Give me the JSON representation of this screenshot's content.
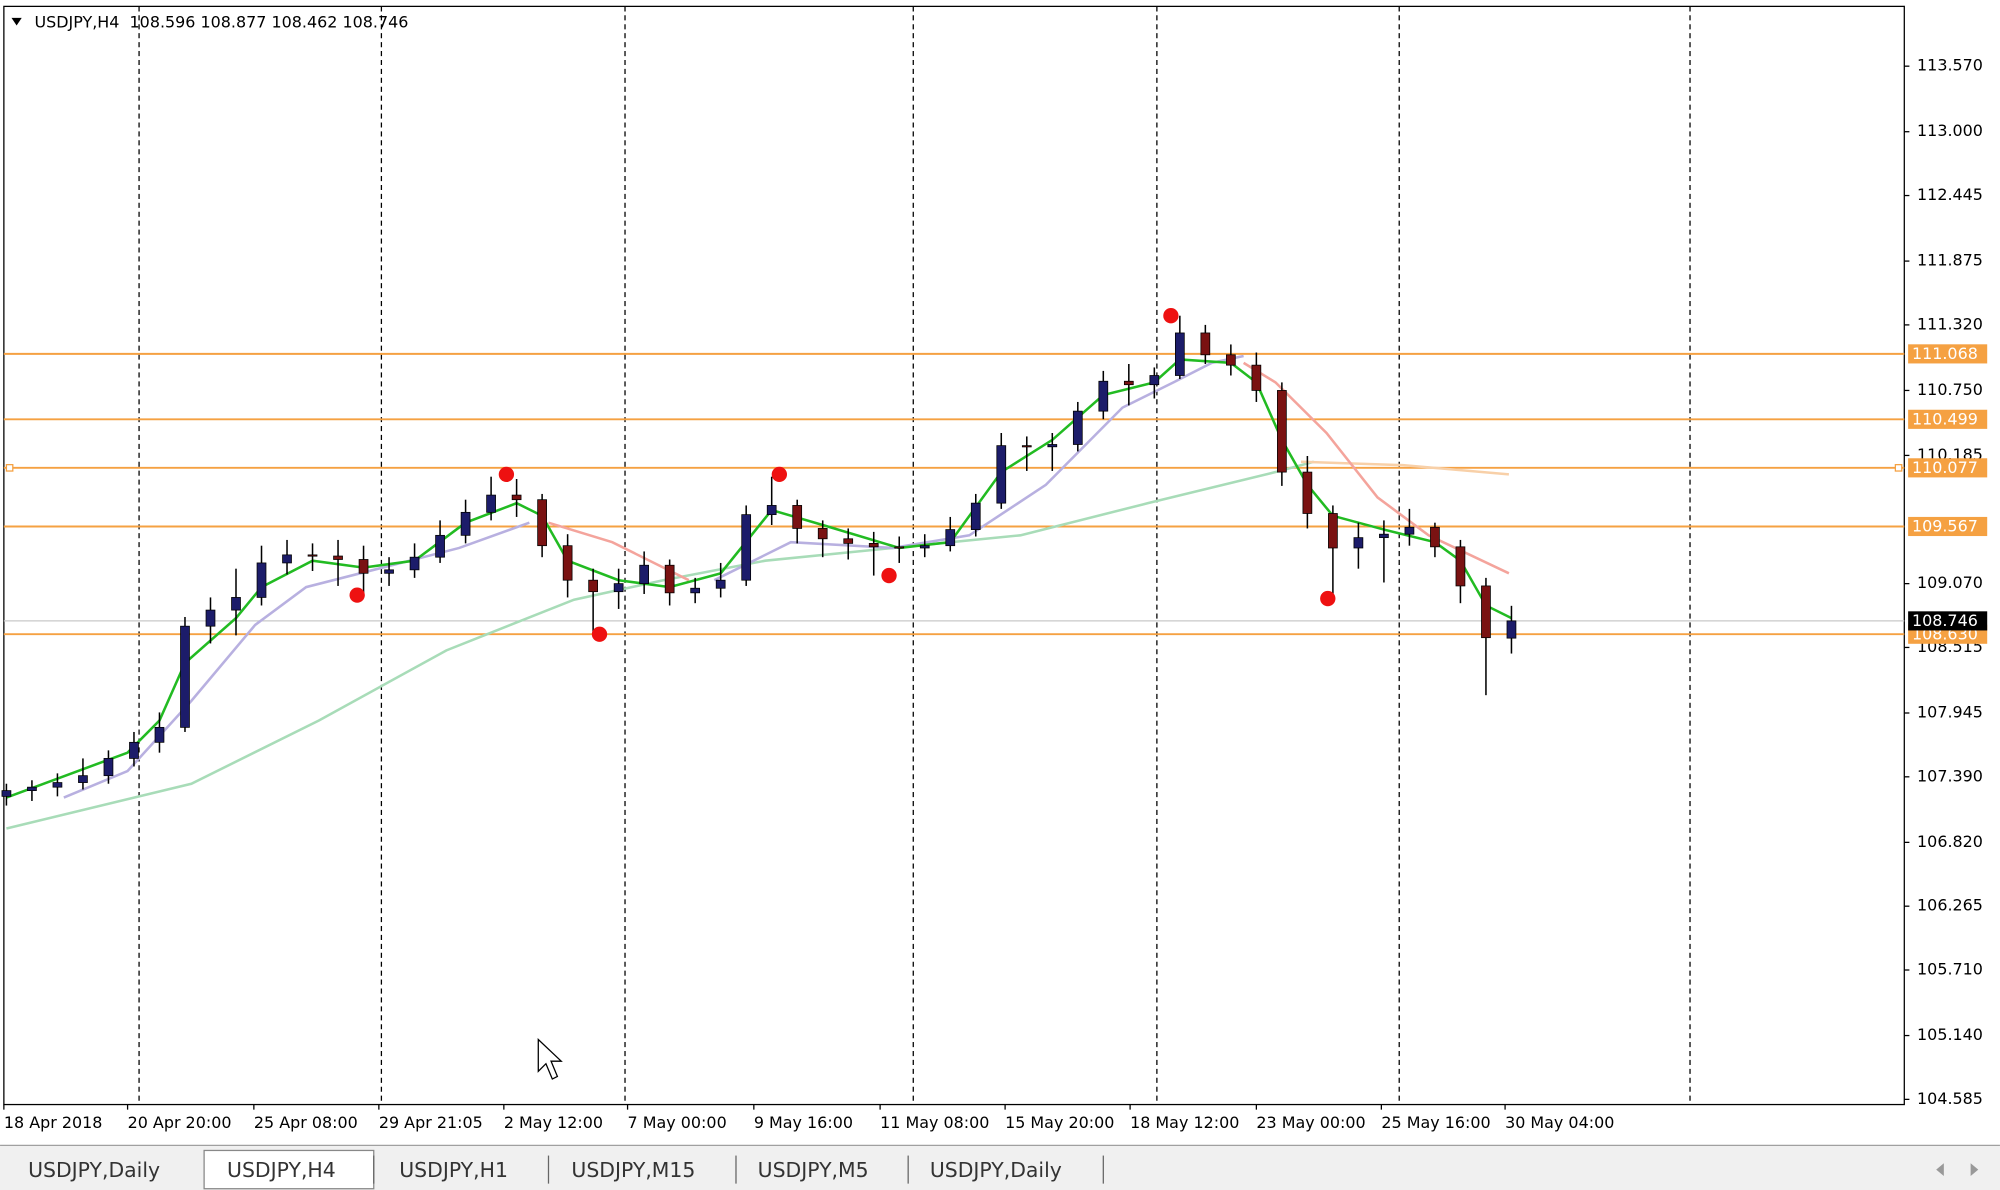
{
  "chart_data": {
    "type": "candlestick",
    "header": "USDJPY,H4  108.596 108.877 108.462 108.746",
    "ylim": [
      104.54,
      114.09
    ],
    "xlim": [
      -0.1,
      74.4
    ],
    "yticks": [
      {
        "value": 113.57,
        "label": "113.570"
      },
      {
        "value": 113,
        "label": "113.000"
      },
      112.445,
      111.875,
      {
        "value": 111.32,
        "label": "111.320"
      },
      {
        "value": 110.75,
        "label": "110.750"
      },
      110.185,
      {
        "value": 109.07,
        "label": "109.070"
      },
      108.515,
      107.945,
      {
        "value": 107.39,
        "label": "107.390"
      },
      {
        "value": 106.82,
        "label": "106.820"
      },
      106.265,
      {
        "value": 105.71,
        "label": "105.710"
      },
      {
        "value": 105.14,
        "label": "105.140"
      },
      104.585
    ],
    "xticks": [
      {
        "value": -0.1,
        "label": "18 Apr 2018"
      },
      {
        "value": 4.75,
        "label": "20 Apr 20:00"
      },
      {
        "value": 9.7,
        "label": "25 Apr 08:00"
      },
      {
        "value": 14.6,
        "label": "29 Apr 21:05"
      },
      {
        "value": 19.5,
        "label": "2 May 12:00"
      },
      {
        "value": 24.35,
        "label": "7 May 00:00"
      },
      {
        "value": 29.3,
        "label": "9 May 16:00"
      },
      {
        "value": 34.25,
        "label": "11 May 08:00"
      },
      {
        "value": 39.15,
        "label": "15 May 20:00"
      },
      {
        "value": 44.05,
        "label": "18 May 12:00"
      },
      {
        "value": 49,
        "label": "23 May 00:00"
      },
      {
        "value": 53.9,
        "label": "25 May 16:00"
      },
      {
        "value": 58.75,
        "label": "30 May 04:00"
      }
    ],
    "up_color": "#1c1c6a",
    "down_color": "#7a1212",
    "level_color": "#f5a142",
    "levels": [
      111.068,
      110.499,
      110.077,
      109.567,
      {
        "value": 108.63,
        "label": "108.630"
      }
    ],
    "current_price": 108.746,
    "candles": [
      [
        107.22,
        107.33,
        107.14,
        107.27
      ],
      [
        107.27,
        107.36,
        107.18,
        107.3
      ],
      [
        107.3,
        107.42,
        107.22,
        107.34
      ],
      [
        107.34,
        107.55,
        107.28,
        107.4
      ],
      [
        107.4,
        107.62,
        107.33,
        107.55
      ],
      [
        107.55,
        107.78,
        107.48,
        107.69
      ],
      [
        107.69,
        107.95,
        107.6,
        107.82
      ],
      [
        107.82,
        108.78,
        107.78,
        108.7
      ],
      [
        108.7,
        108.95,
        108.55,
        108.84
      ],
      [
        108.84,
        109.2,
        108.62,
        108.95
      ],
      [
        108.95,
        109.4,
        108.88,
        109.25
      ],
      [
        109.25,
        109.45,
        109.15,
        109.32
      ],
      [
        109.32,
        109.42,
        109.18,
        109.31
      ],
      [
        109.31,
        109.45,
        109.05,
        109.28
      ],
      [
        109.28,
        109.4,
        108.97,
        109.16
      ],
      [
        109.16,
        109.3,
        109.05,
        109.19
      ],
      [
        109.19,
        109.42,
        109.12,
        109.3
      ],
      [
        109.3,
        109.62,
        109.25,
        109.49
      ],
      [
        109.49,
        109.8,
        109.42,
        109.69
      ],
      [
        109.69,
        110.0,
        109.62,
        109.84
      ],
      [
        109.84,
        109.98,
        109.65,
        109.8
      ],
      [
        109.8,
        109.85,
        109.3,
        109.4
      ],
      [
        109.4,
        109.5,
        108.95,
        109.1
      ],
      [
        109.1,
        109.2,
        108.63,
        109.0
      ],
      [
        109.0,
        109.2,
        108.85,
        109.07
      ],
      [
        109.07,
        109.35,
        108.98,
        109.23
      ],
      [
        109.23,
        109.28,
        108.88,
        108.99
      ],
      [
        108.99,
        109.12,
        108.9,
        109.03
      ],
      [
        109.03,
        109.25,
        108.95,
        109.1
      ],
      [
        109.1,
        109.75,
        109.05,
        109.67
      ],
      [
        109.67,
        110.0,
        109.58,
        109.75
      ],
      [
        109.75,
        109.8,
        109.42,
        109.55
      ],
      [
        109.55,
        109.62,
        109.3,
        109.46
      ],
      [
        109.46,
        109.55,
        109.28,
        109.42
      ],
      [
        109.42,
        109.52,
        109.14,
        109.39
      ],
      [
        109.39,
        109.48,
        109.25,
        109.38
      ],
      [
        109.38,
        109.5,
        109.3,
        109.4
      ],
      [
        109.4,
        109.65,
        109.35,
        109.54
      ],
      [
        109.54,
        109.85,
        109.48,
        109.77
      ],
      [
        109.77,
        110.38,
        109.72,
        110.27
      ],
      [
        110.27,
        110.35,
        110.05,
        110.26
      ],
      [
        110.26,
        110.38,
        110.05,
        110.28
      ],
      [
        110.28,
        110.65,
        110.22,
        110.57
      ],
      [
        110.57,
        110.92,
        110.5,
        110.83
      ],
      [
        110.83,
        110.98,
        110.62,
        110.8
      ],
      [
        110.8,
        110.95,
        110.68,
        110.88
      ],
      [
        110.88,
        111.4,
        110.85,
        111.25
      ],
      [
        111.25,
        111.32,
        110.98,
        111.06
      ],
      [
        111.06,
        111.15,
        110.88,
        110.97
      ],
      [
        110.97,
        111.08,
        110.65,
        110.75
      ],
      [
        110.75,
        110.82,
        109.92,
        110.04
      ],
      [
        110.04,
        110.18,
        109.55,
        109.68
      ],
      [
        109.68,
        109.75,
        108.94,
        109.38
      ],
      [
        109.38,
        109.6,
        109.2,
        109.47
      ],
      [
        109.47,
        109.62,
        109.08,
        109.5
      ],
      [
        109.5,
        109.72,
        109.4,
        109.56
      ],
      [
        109.56,
        109.6,
        109.3,
        109.39
      ],
      [
        109.39,
        109.45,
        108.9,
        109.05
      ],
      [
        109.05,
        109.12,
        108.1,
        108.6
      ],
      [
        108.596,
        108.877,
        108.462,
        108.746
      ]
    ],
    "series": [
      {
        "color": "#a8dcb8",
        "x": [
          0,
          7.25,
          12.25,
          17.25,
          22.25,
          25.75,
          29.75,
          34.75,
          39.75,
          44.75,
          49.75,
          51.25
        ],
        "values": [
          106.94,
          107.33,
          107.88,
          108.49,
          108.93,
          109.1,
          109.27,
          109.38,
          109.49,
          109.77,
          110.04,
          110.13
        ]
      },
      {
        "color": "#f8d0a8",
        "x": [
          50.75,
          54.75,
          58.9
        ],
        "values": [
          110.13,
          110.1,
          110.02
        ]
      },
      {
        "color": "#f4a49c",
        "x": [
          21.25,
          23.75,
          26.75,
          null,
          48.5,
          49.75,
          51.75,
          53.75,
          55.75,
          58.9
        ],
        "values": [
          109.6,
          109.43,
          109.1,
          null,
          110.99,
          110.82,
          110.38,
          109.82,
          109.49,
          109.16
        ]
      },
      {
        "color": "#b8b0e0",
        "x": [
          2.25,
          4.75,
          7.25,
          9.75,
          11.75,
          14.75,
          17.75,
          20.5,
          null,
          27.75,
          30.75,
          34.75,
          37.75,
          40.75,
          43.75,
          45.75,
          47.25,
          48.5
        ],
        "values": [
          107.21,
          107.44,
          108.05,
          108.71,
          109.04,
          109.21,
          109.38,
          109.6,
          null,
          109.1,
          109.43,
          109.38,
          109.49,
          109.93,
          110.6,
          110.82,
          110.99,
          111.05
        ]
      },
      {
        "color": "#22bb22",
        "x": [
          0,
          4.75,
          6,
          7,
          9,
          10,
          12,
          14,
          16,
          18,
          20,
          21,
          22,
          24,
          26,
          28,
          30,
          32,
          35,
          37,
          39,
          41,
          43,
          45,
          46,
          48,
          49,
          50,
          51,
          52,
          54,
          56,
          57,
          58,
          59
        ],
        "values": [
          107.21,
          107.6,
          107.88,
          108.38,
          108.77,
          109.04,
          109.27,
          109.21,
          109.27,
          109.6,
          109.77,
          109.66,
          109.27,
          109.1,
          109.04,
          109.16,
          109.71,
          109.58,
          109.38,
          109.43,
          110.04,
          110.32,
          110.71,
          110.82,
          111.02,
          110.99,
          110.82,
          110.32,
          109.93,
          109.66,
          109.54,
          109.43,
          109.27,
          108.88,
          108.77
        ]
      }
    ],
    "fractals": {
      "color": "#ee1111",
      "x": [
        13.75,
        19.6,
        23.25,
        30.3,
        34.6,
        45.65,
        51.8
      ],
      "values": [
        108.97,
        110.02,
        108.63,
        110.02,
        109.14,
        111.4,
        108.94
      ]
    },
    "tabs": [
      "USDJPY,Daily",
      "USDJPY,H4",
      "USDJPY,H1",
      "USDJPY,M15",
      "USDJPY,M5",
      "USDJPY,Daily"
    ]
  }
}
